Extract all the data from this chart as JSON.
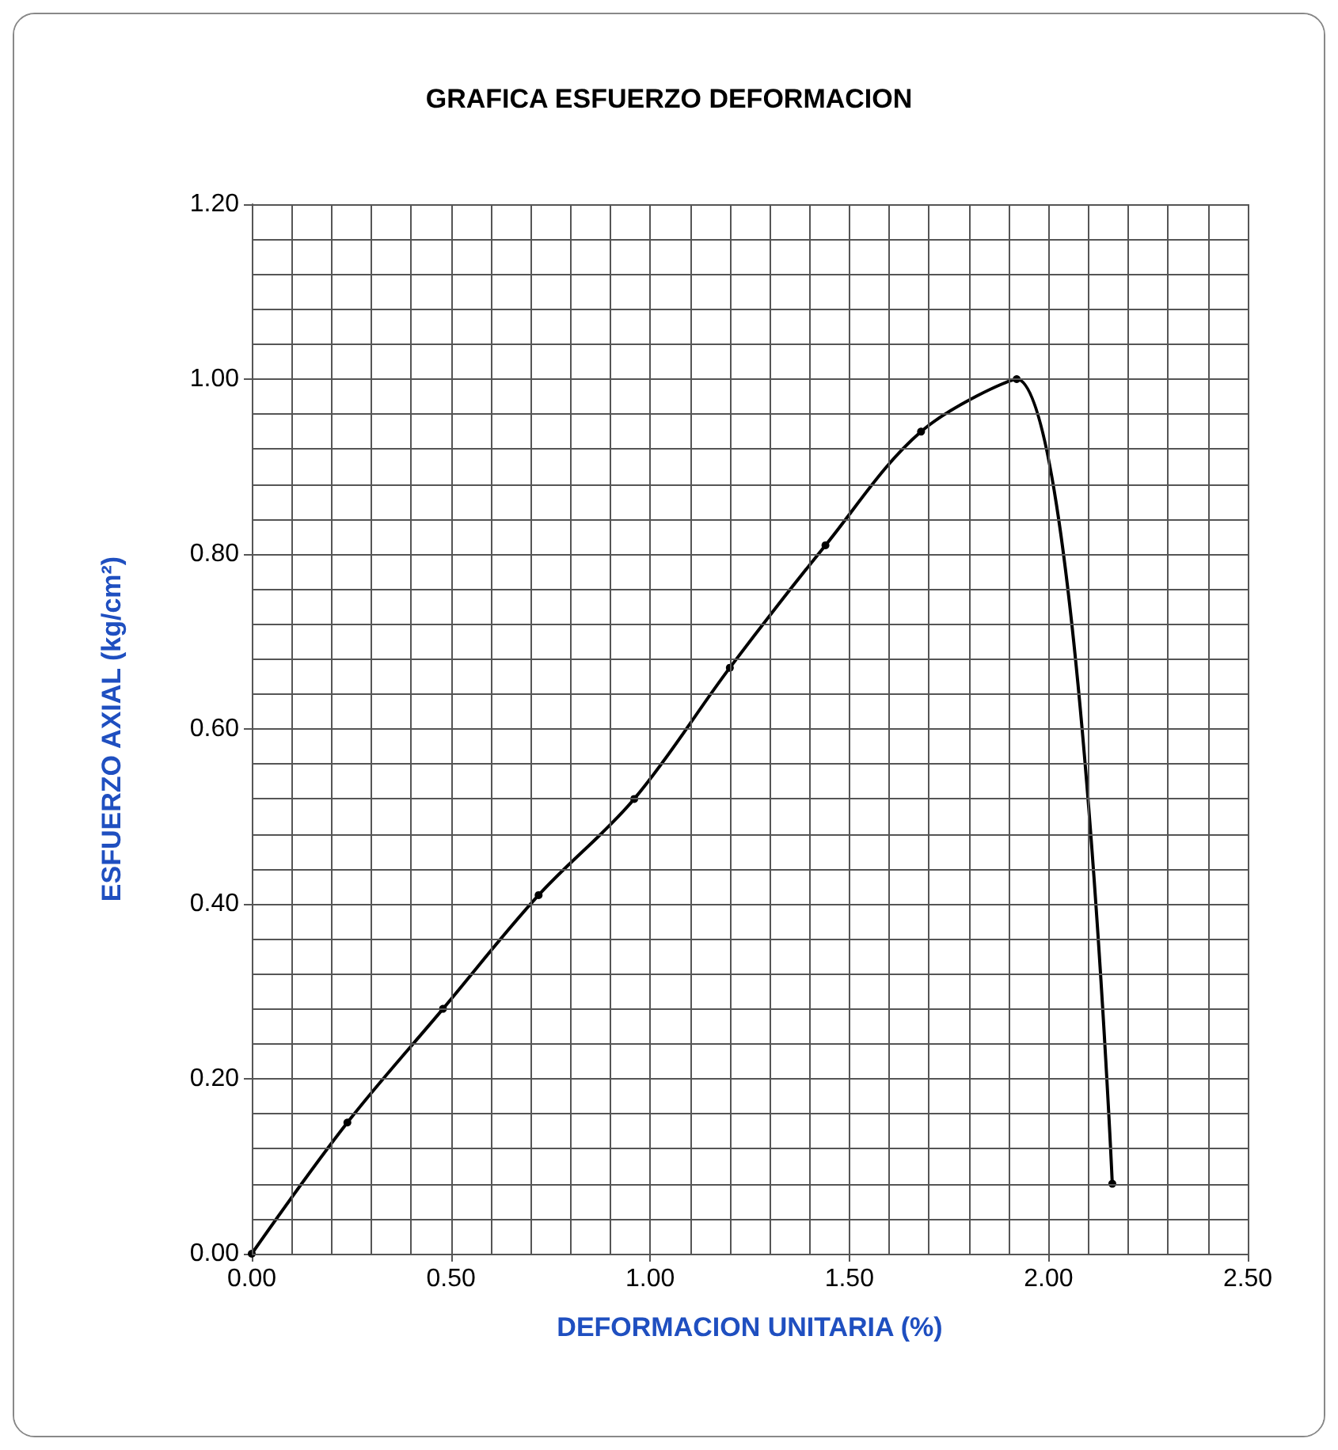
{
  "chart_data": {
    "type": "line",
    "title": "GRAFICA ESFUERZO DEFORMACION",
    "xlabel": "DEFORMACION UNITARIA (%)",
    "ylabel": "ESFUERZO AXIAL (kg/cm²)",
    "x": [
      0,
      0.24,
      0.48,
      0.72,
      0.96,
      1.2,
      1.44,
      1.68,
      1.92,
      2.16
    ],
    "series": [
      {
        "color": "#000000",
        "values": [
          0,
          0.15,
          0.28,
          0.41,
          0.52,
          0.67,
          0.81,
          0.94,
          1.0,
          0.08
        ]
      }
    ],
    "xlim": [
      0,
      2.5
    ],
    "xticks": [
      {
        "value": 0,
        "label": "0.00"
      },
      {
        "value": 0.1,
        "label": null
      },
      {
        "value": 0.2,
        "label": null
      },
      {
        "value": 0.3,
        "label": null
      },
      {
        "value": 0.4,
        "label": null
      },
      {
        "value": 0.5,
        "label": "0.50"
      },
      {
        "value": 0.6,
        "label": null
      },
      {
        "value": 0.7,
        "label": null
      },
      {
        "value": 0.8,
        "label": null
      },
      {
        "value": 0.9,
        "label": null
      },
      {
        "value": 1.0,
        "label": "1.00"
      },
      {
        "value": 1.1,
        "label": null
      },
      {
        "value": 1.2,
        "label": null
      },
      {
        "value": 1.3,
        "label": null
      },
      {
        "value": 1.4,
        "label": null
      },
      {
        "value": 1.5,
        "label": "1.50"
      },
      {
        "value": 1.6,
        "label": null
      },
      {
        "value": 1.7,
        "label": null
      },
      {
        "value": 1.8,
        "label": null
      },
      {
        "value": 1.9,
        "label": null
      },
      {
        "value": 2.0,
        "label": "2.00"
      },
      {
        "value": 2.1,
        "label": null
      },
      {
        "value": 2.2,
        "label": null
      },
      {
        "value": 2.3,
        "label": null
      },
      {
        "value": 2.4,
        "label": null
      },
      {
        "value": 2.5,
        "label": "2.50"
      }
    ],
    "ylim": [
      0,
      1.2
    ],
    "yticks": [
      {
        "value": 0,
        "label": "0.00"
      },
      {
        "value": 0.04,
        "label": null
      },
      {
        "value": 0.08,
        "label": null
      },
      {
        "value": 0.12,
        "label": null
      },
      {
        "value": 0.16,
        "label": null
      },
      {
        "value": 0.2,
        "label": "0.20"
      },
      {
        "value": 0.24,
        "label": null
      },
      {
        "value": 0.28,
        "label": null
      },
      {
        "value": 0.32,
        "label": null
      },
      {
        "value": 0.36,
        "label": null
      },
      {
        "value": 0.4,
        "label": "0.40"
      },
      {
        "value": 0.44,
        "label": null
      },
      {
        "value": 0.48,
        "label": null
      },
      {
        "value": 0.52,
        "label": null
      },
      {
        "value": 0.56,
        "label": null
      },
      {
        "value": 0.6,
        "label": "0.60"
      },
      {
        "value": 0.64,
        "label": null
      },
      {
        "value": 0.68,
        "label": null
      },
      {
        "value": 0.72,
        "label": null
      },
      {
        "value": 0.76,
        "label": null
      },
      {
        "value": 0.8,
        "label": "0.80"
      },
      {
        "value": 0.84,
        "label": null
      },
      {
        "value": 0.88,
        "label": null
      },
      {
        "value": 0.92,
        "label": null
      },
      {
        "value": 0.96,
        "label": null
      },
      {
        "value": 1.0,
        "label": "1.00"
      },
      {
        "value": 1.04,
        "label": null
      },
      {
        "value": 1.08,
        "label": null
      },
      {
        "value": 1.12,
        "label": null
      },
      {
        "value": 1.16,
        "label": null
      },
      {
        "value": 1.2,
        "label": "1.20"
      }
    ],
    "grid": true,
    "marker": "circle",
    "line_style": "solid"
  }
}
